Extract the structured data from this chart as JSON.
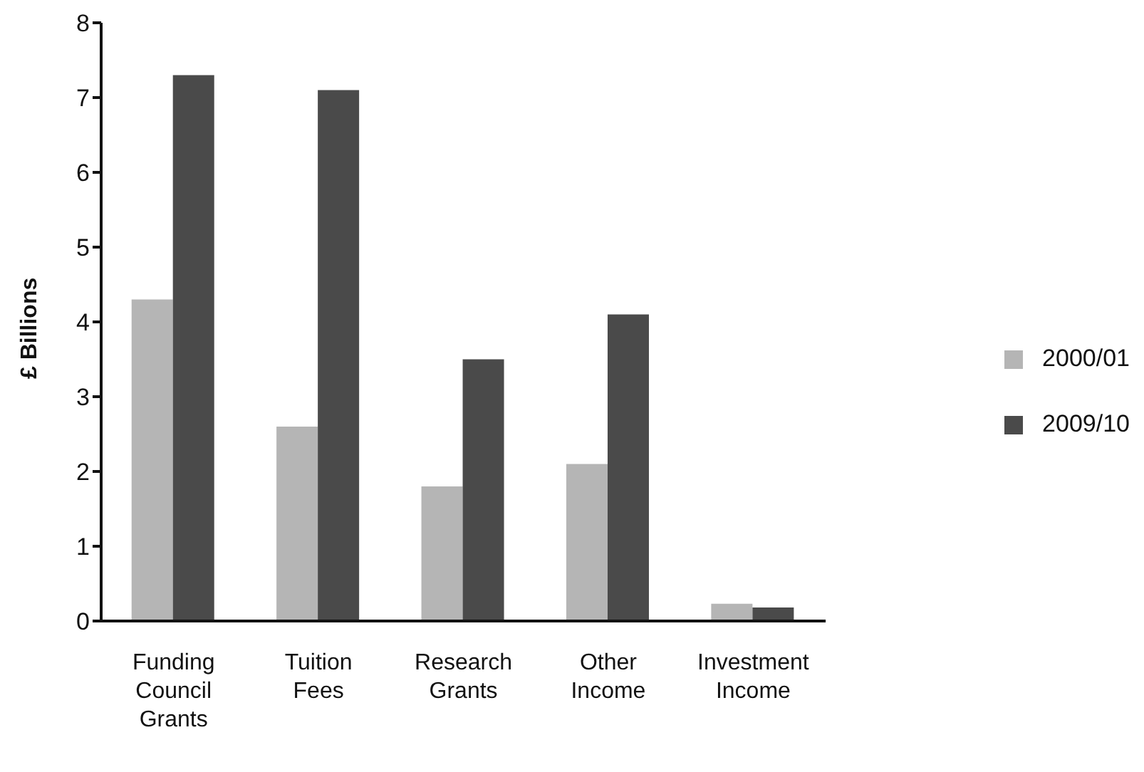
{
  "chart_data": {
    "type": "bar",
    "ylabel": "£ Billions",
    "categories": [
      "Funding Council Grants",
      "Tuition Fees",
      "Research Grants",
      "Other Income",
      "Investment Income"
    ],
    "series": [
      {
        "name": "2000/01",
        "color": "#b5b5b5",
        "values": [
          4.3,
          2.6,
          1.8,
          2.1,
          0.23
        ]
      },
      {
        "name": "2009/10",
        "color": "#4a4a4a",
        "values": [
          7.3,
          7.1,
          3.5,
          4.1,
          0.18
        ]
      }
    ],
    "ylim": [
      0,
      8
    ],
    "yticks": [
      0,
      1,
      2,
      3,
      4,
      5,
      6,
      7,
      8
    ],
    "grid": false,
    "legend": "right"
  }
}
